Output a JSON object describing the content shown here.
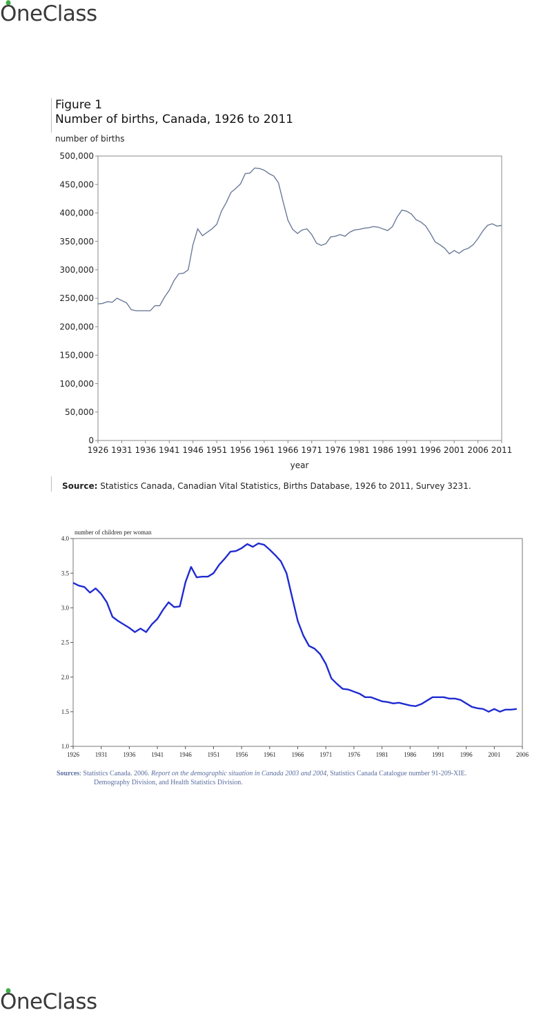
{
  "brand": {
    "name": "OneClass"
  },
  "figure1": {
    "label": "Figure 1",
    "title": "Number of births, Canada, 1926 to 2011",
    "ylabel": "number of births",
    "xlabel": "year",
    "source_label": "Source:",
    "source_text": "Statistics Canada, Canadian Vital Statistics, Births Database, 1926 to 2011, Survey 3231."
  },
  "figure2": {
    "ylabel": "number of children per woman",
    "source_label": "Sources",
    "source_plain1": ":  Statistics Canada. 2006. ",
    "source_italic": "Report on the demographic situation in Canada 2003 and 2004,",
    "source_plain2": " Statistics Canada Catalogue number 91-209-XIE.",
    "source_line2": "Demography Division, and Health Statistics Division."
  },
  "chart_data": [
    {
      "type": "line",
      "title": "Number of births, Canada, 1926 to 2011",
      "xlabel": "year",
      "ylabel": "number of births",
      "xlim": [
        1926,
        2011
      ],
      "ylim": [
        0,
        500000
      ],
      "x_ticks": [
        "1926",
        "1931",
        "1936",
        "1941",
        "1946",
        "1951",
        "1956",
        "1961",
        "1966",
        "1971",
        "1976",
        "1981",
        "1986",
        "1991",
        "1996",
        "2001",
        "2006",
        "2011"
      ],
      "y_ticks": [
        "0",
        "50,000",
        "100,000",
        "150,000",
        "200,000",
        "250,000",
        "300,000",
        "350,000",
        "400,000",
        "450,000",
        "500,000"
      ],
      "grid": false,
      "color": "#6b7a99",
      "series": [
        {
          "x": [
            1926,
            1927,
            1928,
            1929,
            1930,
            1931,
            1932,
            1933,
            1934,
            1935,
            1936,
            1937,
            1938,
            1939,
            1940,
            1941,
            1942,
            1943,
            1944,
            1945,
            1946,
            1947,
            1948,
            1949,
            1950,
            1951,
            1952,
            1953,
            1954,
            1955,
            1956,
            1957,
            1958,
            1959,
            1960,
            1961,
            1962,
            1963,
            1964,
            1965,
            1966,
            1967,
            1968,
            1969,
            1970,
            1971,
            1972,
            1973,
            1974,
            1975,
            1976,
            1977,
            1978,
            1979,
            1980,
            1981,
            1982,
            1983,
            1984,
            1985,
            1986,
            1987,
            1988,
            1989,
            1990,
            1991,
            1992,
            1993,
            1994,
            1995,
            1996,
            1997,
            1998,
            1999,
            2000,
            2001,
            2002,
            2003,
            2004,
            2005,
            2006,
            2007,
            2008,
            2009,
            2010,
            2011
          ],
          "values": [
            240000,
            241000,
            244000,
            243000,
            250000,
            246000,
            242000,
            230000,
            228000,
            228000,
            228000,
            228000,
            237000,
            237000,
            252000,
            264000,
            281000,
            293000,
            294000,
            300000,
            344000,
            372000,
            360000,
            366000,
            372000,
            380000,
            403000,
            418000,
            436000,
            443000,
            451000,
            469000,
            470000,
            479000,
            478000,
            475000,
            469000,
            465000,
            453000,
            419000,
            387000,
            371000,
            364000,
            370000,
            372000,
            362000,
            347000,
            343000,
            346000,
            358000,
            359000,
            362000,
            359000,
            366000,
            370000,
            371000,
            373000,
            374000,
            376000,
            375000,
            372000,
            369000,
            376000,
            393000,
            405000,
            403000,
            398000,
            388000,
            384000,
            377000,
            364000,
            349000,
            344000,
            338000,
            328000,
            334000,
            329000,
            335000,
            338000,
            344000,
            355000,
            368000,
            378000,
            381000,
            377000,
            378000
          ]
        }
      ]
    },
    {
      "type": "line",
      "ylabel": "number of children per woman",
      "xlim": [
        1926,
        2006
      ],
      "ylim": [
        1.0,
        4.0
      ],
      "x_ticks": [
        "1926",
        "1931",
        "1936",
        "1941",
        "1946",
        "1951",
        "1956",
        "1961",
        "1966",
        "1971",
        "1976",
        "1981",
        "1986",
        "1991",
        "1996",
        "2001",
        "2006"
      ],
      "y_ticks": [
        "1.0",
        "1.5",
        "2.0",
        "2.5",
        "3.0",
        "3.5",
        "4.0"
      ],
      "grid": false,
      "color": "#1f2bd1",
      "series": [
        {
          "x": [
            1926,
            1927,
            1928,
            1929,
            1930,
            1931,
            1932,
            1933,
            1934,
            1935,
            1936,
            1937,
            1938,
            1939,
            1940,
            1941,
            1942,
            1943,
            1944,
            1945,
            1946,
            1947,
            1948,
            1949,
            1950,
            1951,
            1952,
            1953,
            1954,
            1955,
            1956,
            1957,
            1958,
            1959,
            1960,
            1961,
            1962,
            1963,
            1964,
            1965,
            1966,
            1967,
            1968,
            1969,
            1970,
            1971,
            1972,
            1973,
            1974,
            1975,
            1976,
            1977,
            1978,
            1979,
            1980,
            1981,
            1982,
            1983,
            1984,
            1985,
            1986,
            1987,
            1988,
            1989,
            1990,
            1991,
            1992,
            1993,
            1994,
            1995,
            1996,
            1997,
            1998,
            1999,
            2000,
            2001,
            2002,
            2003,
            2004,
            2005
          ],
          "values": [
            3.36,
            3.32,
            3.3,
            3.22,
            3.28,
            3.2,
            3.08,
            2.87,
            2.81,
            2.76,
            2.71,
            2.65,
            2.7,
            2.65,
            2.76,
            2.84,
            2.97,
            3.08,
            3.01,
            3.02,
            3.37,
            3.59,
            3.44,
            3.45,
            3.45,
            3.5,
            3.62,
            3.71,
            3.81,
            3.82,
            3.86,
            3.92,
            3.88,
            3.93,
            3.91,
            3.84,
            3.76,
            3.67,
            3.5,
            3.15,
            2.81,
            2.6,
            2.45,
            2.41,
            2.33,
            2.19,
            1.98,
            1.9,
            1.83,
            1.82,
            1.79,
            1.76,
            1.71,
            1.71,
            1.68,
            1.65,
            1.64,
            1.62,
            1.63,
            1.61,
            1.59,
            1.58,
            1.61,
            1.66,
            1.71,
            1.71,
            1.71,
            1.69,
            1.69,
            1.67,
            1.62,
            1.57,
            1.55,
            1.54,
            1.5,
            1.54,
            1.5,
            1.53,
            1.53,
            1.54
          ]
        }
      ]
    }
  ]
}
